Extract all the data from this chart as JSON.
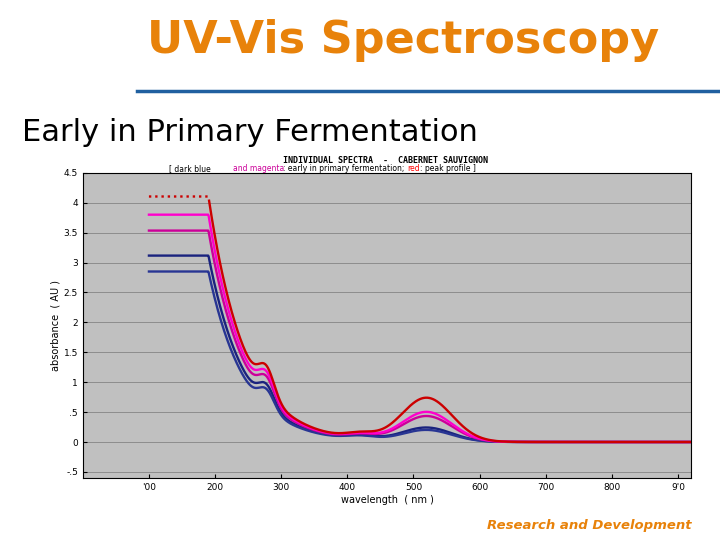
{
  "title_main": "UV-Vis Spectroscopy",
  "title_main_color": "#E8820A",
  "subtitle": "Early in Primary Fermentation",
  "subtitle_color": "#000000",
  "subtitle_fontsize": 22,
  "title_fontsize": 32,
  "bg_color": "#FFFFFF",
  "header_line_color": "#2060A0",
  "footer_text": "Research and Development",
  "footer_color": "#E8820A",
  "plot_bg_color": "#C0C0C0",
  "inner_title1": "INDIVIDUAL SPECTRA  -  CABERNET SAUVIGNON",
  "inner_subtitle_black1": "[ dark blue  ",
  "inner_subtitle_magenta": "and magenta",
  "inner_subtitle_black2": ": early in primary fermentation;  ",
  "inner_subtitle_red": "red",
  "inner_subtitle_black3": ": peak profile ]",
  "xlabel": "wavelength  ( nm )",
  "ylabel": "absorbance  ( AU )",
  "xlim": [
    0,
    920
  ],
  "ylim": [
    -0.6,
    4.5
  ],
  "xticks": [
    100,
    200,
    300,
    400,
    500,
    600,
    700,
    800,
    900
  ],
  "yticks": [
    -0.5,
    0.0,
    0.5,
    1.0,
    1.5,
    2.0,
    2.5,
    3.0,
    3.5,
    4.0,
    4.5
  ],
  "ytick_labels": [
    "-.5",
    "0",
    ".5",
    "1",
    "1.5",
    "2",
    "2.5",
    "3",
    "3.5",
    "4",
    "4.5"
  ],
  "xtick_labels": [
    "'00",
    "200",
    "300",
    "400",
    "500",
    "600",
    "700",
    "800",
    "9'0"
  ],
  "color_darkblue1": "#1A237E",
  "color_darkblue2": "#283593",
  "color_magenta1": "#CC0099",
  "color_magenta2": "#FF00CC",
  "color_red": "#CC0000"
}
